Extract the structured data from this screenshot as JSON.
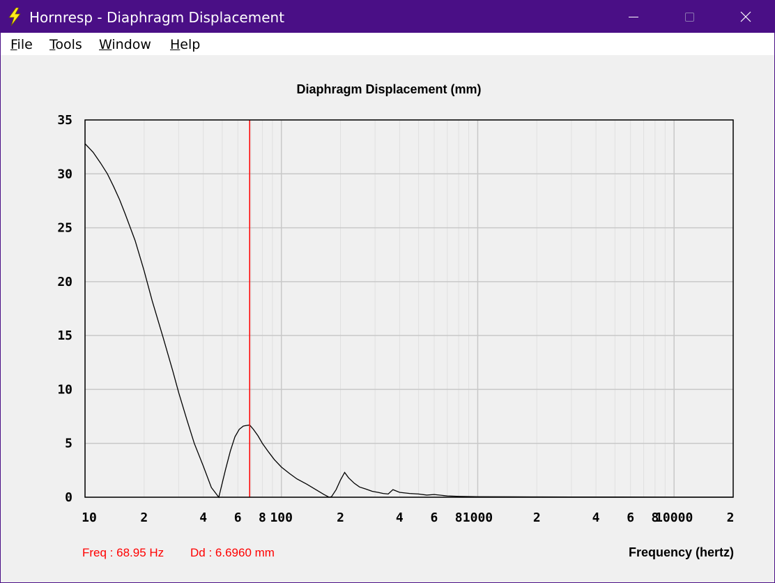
{
  "window": {
    "title": "Hornresp - Diaphragm Displacement",
    "app_icon": "lightning-bolt-icon",
    "controls": {
      "minimize": "minimize-icon",
      "maximize": "maximize-icon",
      "close": "close-icon"
    }
  },
  "menu": {
    "items": [
      {
        "key": "F",
        "rest": "ile"
      },
      {
        "key": "T",
        "rest": "ools"
      },
      {
        "key": "W",
        "rest": "indow"
      },
      {
        "key": "H",
        "rest": "elp"
      }
    ]
  },
  "colors": {
    "titlebar": "#4a0f86",
    "curve": "#000000",
    "cursor": "#ff0000",
    "grid_major": "#c8c8c8",
    "grid_minor": "#e0e0e0"
  },
  "readout": {
    "freq": "Freq : 68.95 Hz",
    "dd": "Dd : 6.6960 mm"
  },
  "chart_data": {
    "type": "line",
    "title": "Diaphragm Displacement (mm)",
    "xlabel": "Frequency (hertz)",
    "ylabel": "",
    "xscale": "log",
    "xlim": [
      10,
      20000
    ],
    "ylim": [
      0,
      35
    ],
    "yticks": [
      0,
      5,
      10,
      15,
      20,
      25,
      30,
      35
    ],
    "ytick_labels": [
      "0",
      "5",
      "10",
      "15",
      "20",
      "25",
      "30",
      "35"
    ],
    "xtick_labels": [
      {
        "value": 10,
        "label": "10"
      },
      {
        "value": 20,
        "label": "2"
      },
      {
        "value": 40,
        "label": "4"
      },
      {
        "value": 60,
        "label": "6"
      },
      {
        "value": 80,
        "label": "8"
      },
      {
        "value": 100,
        "label": "100"
      },
      {
        "value": 200,
        "label": "2"
      },
      {
        "value": 400,
        "label": "4"
      },
      {
        "value": 600,
        "label": "6"
      },
      {
        "value": 800,
        "label": "8"
      },
      {
        "value": 1000,
        "label": "1000"
      },
      {
        "value": 2000,
        "label": "2"
      },
      {
        "value": 4000,
        "label": "4"
      },
      {
        "value": 6000,
        "label": "6"
      },
      {
        "value": 8000,
        "label": "8"
      },
      {
        "value": 10000,
        "label": "10000"
      },
      {
        "value": 20000,
        "label": "2"
      }
    ],
    "cursor_freq": 68.95,
    "series": [
      {
        "name": "Diaphragm Displacement",
        "x": [
          10,
          11,
          12,
          13,
          14,
          15,
          16,
          18,
          20,
          22,
          25,
          28,
          30,
          33,
          36,
          40,
          44,
          48,
          52,
          55,
          58,
          61,
          64,
          66,
          68.95,
          72,
          76,
          80,
          86,
          92,
          100,
          110,
          120,
          135,
          150,
          165,
          175,
          180,
          190,
          200,
          210,
          220,
          235,
          250,
          270,
          290,
          310,
          330,
          350,
          370,
          400,
          450,
          500,
          550,
          600,
          700,
          800,
          1000,
          1500,
          2000,
          3000,
          5000,
          10000,
          20000
        ],
        "y": [
          32.8,
          32.0,
          31.0,
          30.0,
          28.8,
          27.6,
          26.3,
          23.8,
          21.0,
          18.2,
          14.8,
          11.7,
          9.7,
          7.2,
          5.0,
          2.9,
          0.9,
          0.0,
          2.6,
          4.3,
          5.6,
          6.3,
          6.6,
          6.65,
          6.7,
          6.3,
          5.7,
          5.0,
          4.2,
          3.5,
          2.8,
          2.2,
          1.7,
          1.2,
          0.7,
          0.25,
          0.0,
          0.05,
          0.7,
          1.6,
          2.3,
          1.8,
          1.3,
          0.95,
          0.75,
          0.55,
          0.45,
          0.35,
          0.3,
          0.7,
          0.45,
          0.35,
          0.3,
          0.2,
          0.25,
          0.12,
          0.08,
          0.05,
          0.04,
          0.03,
          0.02,
          0.02,
          0.01,
          0.01
        ]
      }
    ]
  }
}
